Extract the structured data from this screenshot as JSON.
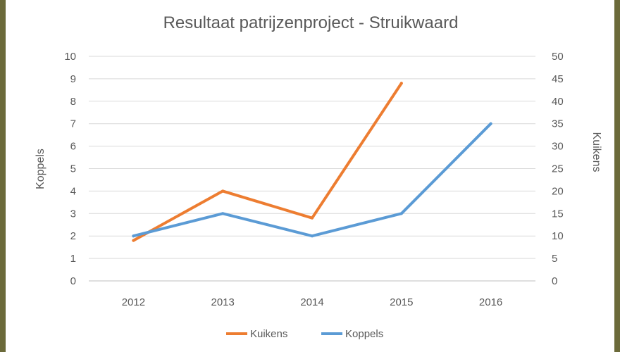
{
  "chart_data": {
    "type": "line",
    "title": "Resultaat patrijzenproject - Struikwaard",
    "categories": [
      "2012",
      "2013",
      "2014",
      "2015",
      "2016"
    ],
    "y_left": {
      "label": "Koppels",
      "range": [
        0,
        10
      ],
      "ticks": [
        "0",
        "1",
        "2",
        "3",
        "4",
        "5",
        "6",
        "7",
        "8",
        "9",
        "10"
      ]
    },
    "y_right": {
      "label": "Kuikens",
      "range": [
        0,
        50
      ],
      "ticks": [
        "0",
        "5",
        "10",
        "15",
        "20",
        "25",
        "30",
        "35",
        "40",
        "45",
        "50"
      ]
    },
    "grid": true,
    "legend_position": "bottom",
    "series": [
      {
        "name": "Kuikens",
        "axis": "right",
        "color": "#ed7d31",
        "values": [
          9,
          20,
          14,
          44,
          null
        ]
      },
      {
        "name": "Koppels",
        "axis": "left",
        "color": "#5b9bd5",
        "values": [
          2,
          3,
          2,
          3,
          7
        ]
      }
    ]
  }
}
